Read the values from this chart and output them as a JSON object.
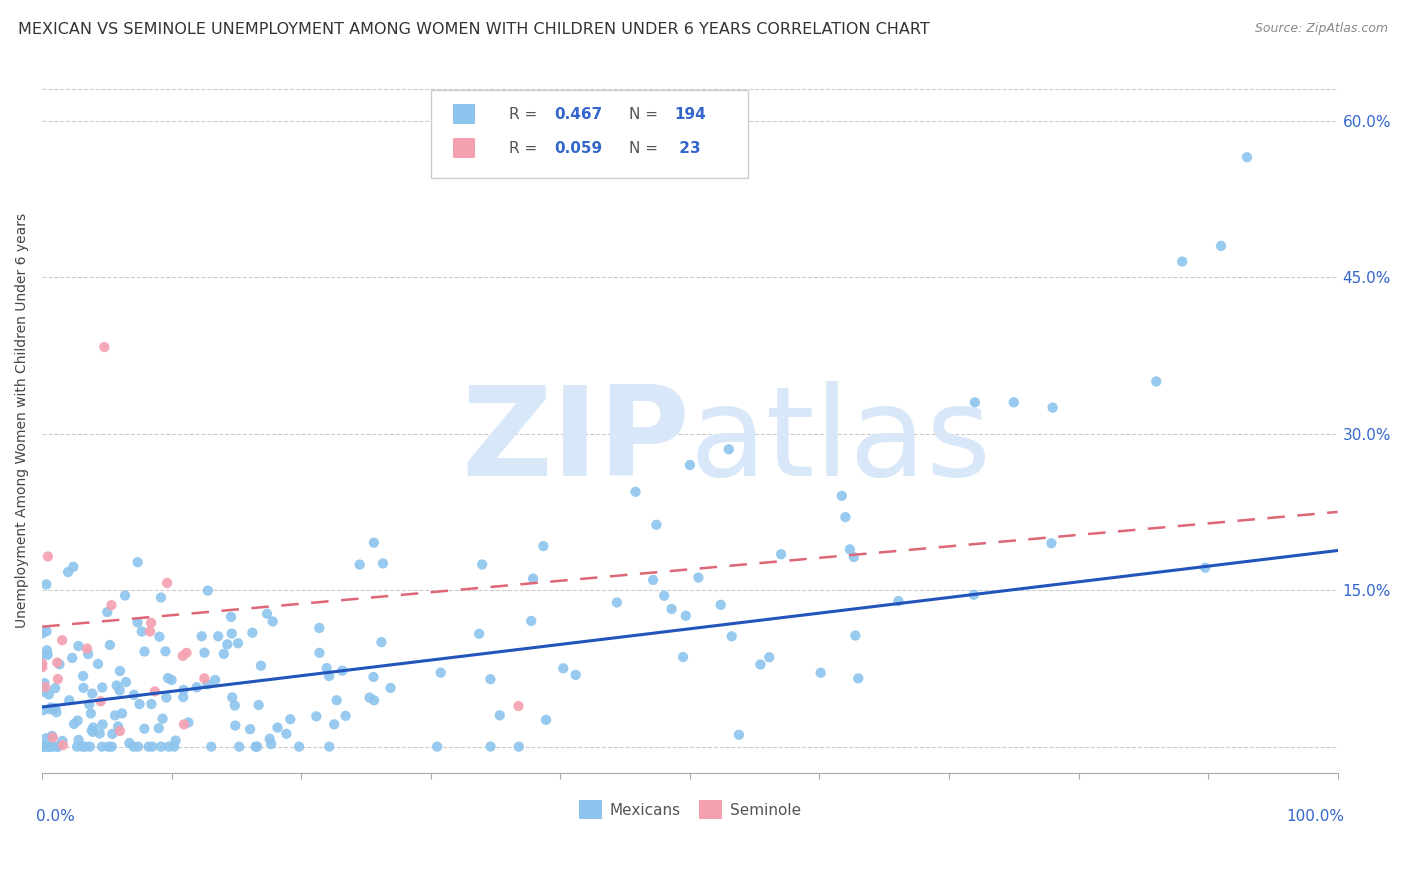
{
  "title": "MEXICAN VS SEMINOLE UNEMPLOYMENT AMONG WOMEN WITH CHILDREN UNDER 6 YEARS CORRELATION CHART",
  "source": "Source: ZipAtlas.com",
  "ylabel": "Unemployment Among Women with Children Under 6 years",
  "ytick_values": [
    0.0,
    0.15,
    0.3,
    0.45,
    0.6
  ],
  "ytick_labels": [
    "",
    "15.0%",
    "30.0%",
    "45.0%",
    "60.0%"
  ],
  "xlim": [
    0.0,
    1.0
  ],
  "ylim": [
    -0.025,
    0.65
  ],
  "mexican_R": 0.467,
  "mexican_N": 194,
  "seminole_R": 0.059,
  "seminole_N": 23,
  "mexican_color": "#8DC4ED",
  "seminole_color": "#F4A0B0",
  "mexican_line_color": "#2255BB",
  "seminole_line_color": "#DD6677",
  "background_color": "#FFFFFF",
  "watermark_color": "#D8E8F8",
  "title_fontsize": 11.5,
  "legend_fontsize": 11,
  "axis_label_fontsize": 10
}
